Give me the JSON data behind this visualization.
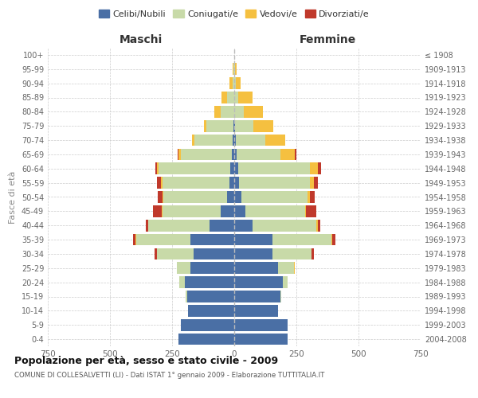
{
  "age_groups": [
    "0-4",
    "5-9",
    "10-14",
    "15-19",
    "20-24",
    "25-29",
    "30-34",
    "35-39",
    "40-44",
    "45-49",
    "50-54",
    "55-59",
    "60-64",
    "65-69",
    "70-74",
    "75-79",
    "80-84",
    "85-89",
    "90-94",
    "95-99",
    "100+"
  ],
  "birth_years": [
    "2004-2008",
    "1999-2003",
    "1994-1998",
    "1989-1993",
    "1984-1988",
    "1979-1983",
    "1974-1978",
    "1969-1973",
    "1964-1968",
    "1959-1963",
    "1954-1958",
    "1949-1953",
    "1944-1948",
    "1939-1943",
    "1934-1938",
    "1929-1933",
    "1924-1928",
    "1919-1923",
    "1914-1918",
    "1909-1913",
    "≤ 1908"
  ],
  "male": {
    "celibi": [
      225,
      215,
      185,
      190,
      200,
      175,
      165,
      175,
      100,
      55,
      30,
      20,
      15,
      10,
      5,
      3,
      0,
      0,
      0,
      0,
      0
    ],
    "coniugati": [
      0,
      0,
      0,
      5,
      20,
      55,
      145,
      220,
      245,
      235,
      255,
      270,
      290,
      205,
      155,
      110,
      55,
      30,
      8,
      3,
      0
    ],
    "vedovi": [
      0,
      0,
      0,
      0,
      1,
      2,
      1,
      2,
      2,
      3,
      4,
      5,
      5,
      8,
      10,
      10,
      25,
      20,
      12,
      5,
      0
    ],
    "divorziati": [
      0,
      0,
      0,
      0,
      0,
      0,
      8,
      10,
      10,
      35,
      20,
      15,
      8,
      5,
      0,
      0,
      0,
      0,
      0,
      0,
      0
    ]
  },
  "female": {
    "nubili": [
      215,
      215,
      175,
      185,
      195,
      175,
      155,
      155,
      75,
      45,
      30,
      20,
      15,
      10,
      5,
      2,
      0,
      0,
      0,
      0,
      0
    ],
    "coniugate": [
      0,
      0,
      0,
      5,
      20,
      65,
      155,
      235,
      255,
      240,
      265,
      285,
      290,
      175,
      120,
      75,
      40,
      15,
      5,
      2,
      0
    ],
    "vedove": [
      0,
      0,
      0,
      0,
      0,
      2,
      2,
      3,
      5,
      5,
      10,
      15,
      30,
      60,
      80,
      80,
      75,
      60,
      20,
      8,
      0
    ],
    "divorziate": [
      0,
      0,
      0,
      0,
      0,
      0,
      8,
      15,
      10,
      40,
      20,
      15,
      15,
      5,
      0,
      0,
      0,
      0,
      0,
      0,
      0
    ]
  },
  "colors": {
    "celibi": "#4a6fa5",
    "coniugati": "#c8daa8",
    "vedovi": "#f5c040",
    "divorziati": "#c0392b"
  },
  "title": "Popolazione per età, sesso e stato civile - 2009",
  "subtitle": "COMUNE DI COLLESALVETTI (LI) - Dati ISTAT 1° gennaio 2009 - Elaborazione TUTTITALIA.IT",
  "xlabel_left": "Maschi",
  "xlabel_right": "Femmine",
  "ylabel_left": "Fasce di età",
  "xlim": 750,
  "background_color": "#ffffff",
  "grid_color": "#cccccc",
  "legend_labels": [
    "Celibi/Nubili",
    "Coniugati/e",
    "Vedovi/e",
    "Divorziati/e"
  ]
}
